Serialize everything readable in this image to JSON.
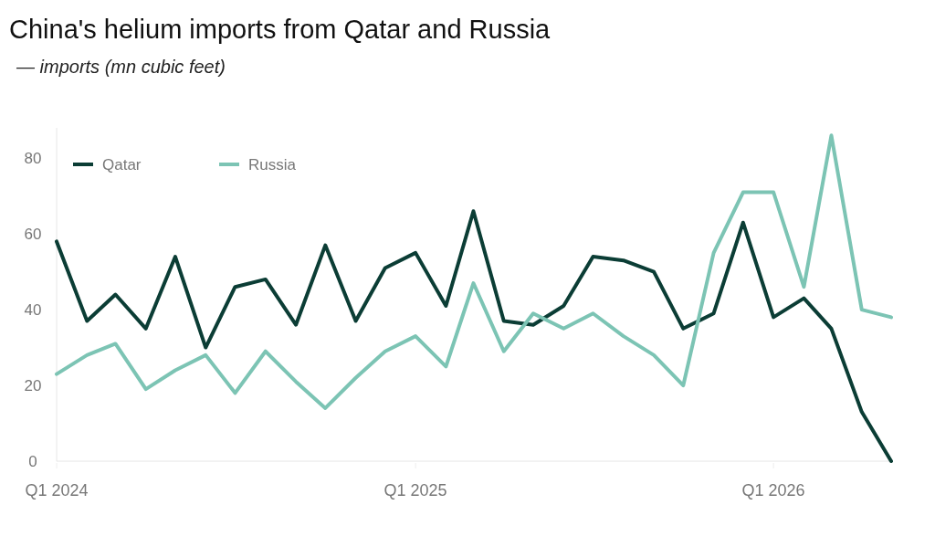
{
  "chart_data": {
    "type": "line",
    "title": "China's helium imports from Qatar and Russia",
    "subtitle": "— imports (mn cubic feet)",
    "x": [
      "2024-01",
      "2024-02",
      "2024-03",
      "2024-04",
      "2024-05",
      "2024-06",
      "2024-07",
      "2024-08",
      "2024-09",
      "2024-10",
      "2024-11",
      "2024-12",
      "2025-01",
      "2025-02",
      "2025-03",
      "2025-04",
      "2025-05",
      "2025-06",
      "2025-07",
      "2025-08",
      "2025-09",
      "2025-10",
      "2025-11",
      "2025-12",
      "2026-01",
      "2026-02",
      "2026-03",
      "2026-04",
      "2026-05"
    ],
    "series": [
      {
        "name": "Qatar",
        "color": "#0b3d35",
        "values": [
          58,
          37,
          44,
          35,
          54,
          30,
          46,
          48,
          36,
          57,
          37,
          51,
          55,
          41,
          66,
          37,
          36,
          41,
          54,
          53,
          50,
          35,
          39,
          63,
          38,
          43,
          35,
          13,
          0
        ]
      },
      {
        "name": "Russia",
        "color": "#7cc4b4",
        "values": [
          23,
          28,
          31,
          19,
          24,
          28,
          18,
          29,
          21,
          14,
          22,
          29,
          33,
          25,
          47,
          29,
          39,
          35,
          39,
          33,
          28,
          20,
          55,
          71,
          71,
          46,
          86,
          40,
          38
        ]
      }
    ],
    "xticks": [
      {
        "value": "2024-01",
        "label": "Q1 2024"
      },
      {
        "value": "2025-01",
        "label": "Q1 2025"
      },
      {
        "value": "2026-01",
        "label": "Q1 2026"
      }
    ],
    "xlim": [
      "2024-01",
      "2026-05"
    ],
    "ylim": [
      0,
      88
    ],
    "yticks": [
      0,
      20,
      40,
      60,
      80
    ],
    "grid": false,
    "legend": "top left",
    "line_style": "solid",
    "marker": "none"
  }
}
